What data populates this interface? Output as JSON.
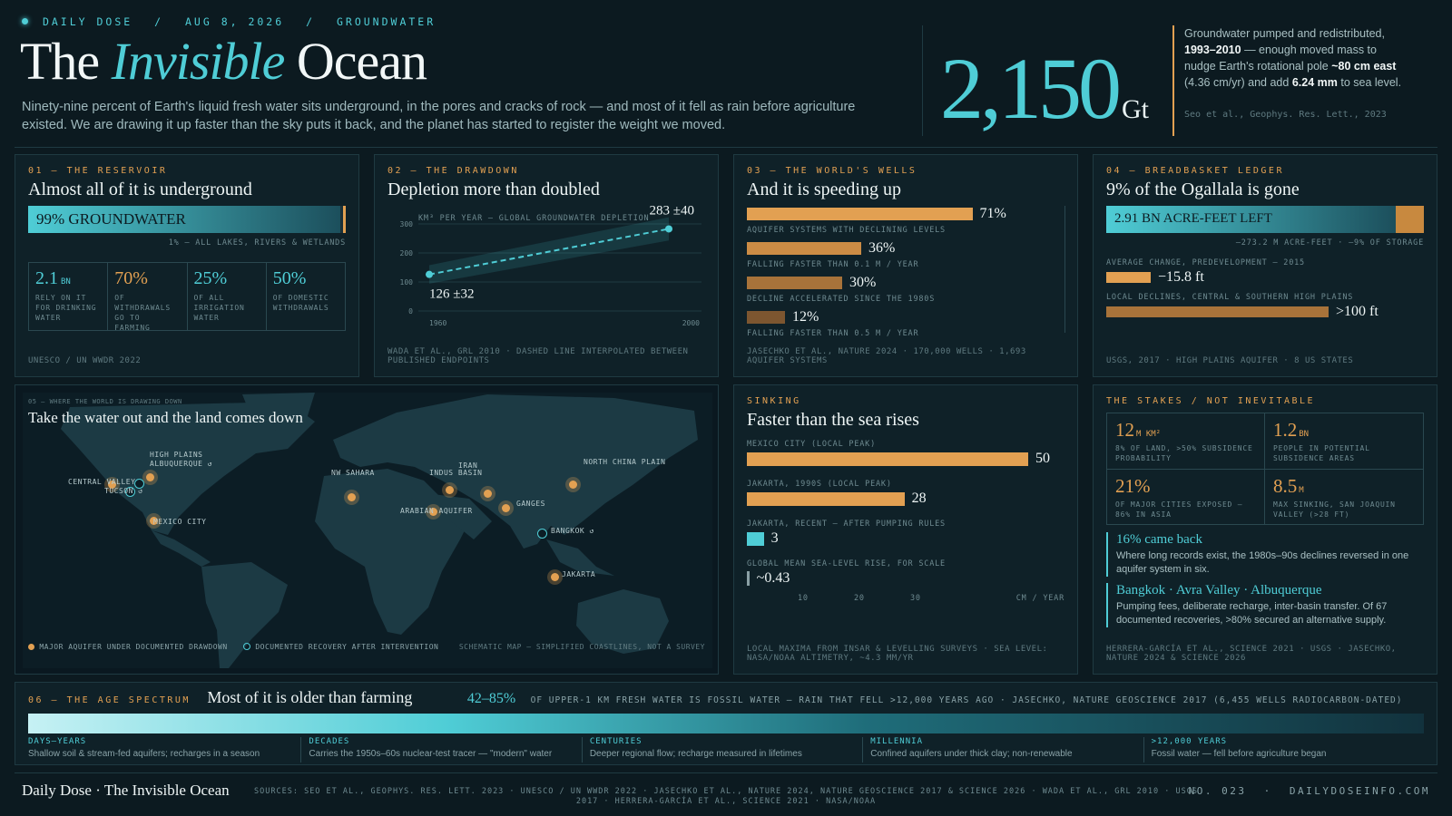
{
  "header": {
    "kicker": [
      "DAILY DOSE",
      "/",
      "AUG 8, 2026",
      "/",
      "GROUNDWATER"
    ],
    "title_1": "The",
    "title_2": "Invisible",
    "title_3": "Ocean",
    "lede": "Ninety-nine percent of Earth's liquid fresh water sits underground, in the pores and cracks of rock — and most of it fell as rain before agriculture existed. We are drawing it up faster than the sky puts it back, and the planet has started to register the weight we moved.",
    "big_number": "2,150",
    "big_unit": "Gt",
    "side_text_1": "Groundwater pumped and redistributed,",
    "side_bold_1": "1993–2010",
    "side_text_2": "— enough moved mass to nudge Earth's rotational pole",
    "side_bold_2": "~80 cm east",
    "side_text_3": "(4.36 cm/yr) and add",
    "side_bold_3": "6.24 mm",
    "side_text_4": "to sea level.",
    "side_source": "Seo et al., Geophys. Res. Lett., 2023"
  },
  "p1": {
    "kicker": "01 — THE RESERVOIR",
    "title": "Almost all of it is underground",
    "bar_label": "99% GROUNDWATER",
    "bar_fraction": 0.99,
    "bar_caption": "1% — ALL LAKES, RIVERS & WETLANDS",
    "stats": [
      {
        "value": "2.1",
        "unit": "BN",
        "label": "RELY ON IT FOR DRINKING WATER",
        "color": "#4fcdd6"
      },
      {
        "value": "70%",
        "unit": "",
        "label": "OF WITHDRAWALS GO TO FARMING",
        "color": "#e2a052"
      },
      {
        "value": "25%",
        "unit": "",
        "label": "OF ALL IRRIGATION WATER",
        "color": "#4fcdd6"
      },
      {
        "value": "50%",
        "unit": "",
        "label": "OF DOMESTIC WITHDRAWALS",
        "color": "#4fcdd6"
      }
    ],
    "source": "UNESCO / UN WWDR 2022"
  },
  "p2": {
    "kicker": "02 — THE DRAWDOWN",
    "title": "Depletion more than doubled",
    "axis_title": "KM³ PER YEAR — GLOBAL GROUNDWATER DEPLETION",
    "start_label": "126 ±32",
    "end_label": "283 ±40",
    "source": "WADA ET AL., GRL 2010 · DASHED LINE INTERPOLATED BETWEEN PUBLISHED ENDPOINTS"
  },
  "chart_data": {
    "type": "line",
    "x": [
      1960,
      2000
    ],
    "values": [
      126,
      283
    ],
    "error": [
      32,
      40
    ],
    "ylim": [
      0,
      300
    ],
    "yticks": [
      "300",
      "200",
      "100",
      "0"
    ],
    "xticks": [
      "1960",
      "2000"
    ],
    "ylabel": "KM³ PER YEAR — GLOBAL GROUNDWATER DEPLETION"
  },
  "p3": {
    "kicker": "03 — THE WORLD'S WELLS",
    "title": "And it is speeding up",
    "bars": [
      {
        "value": "71%",
        "frac": 0.71,
        "label": "AQUIFER SYSTEMS WITH DECLINING LEVELS",
        "color": "#e2a052"
      },
      {
        "value": "36%",
        "frac": 0.36,
        "label": "FALLING FASTER THAN 0.1 M / YEAR",
        "color": "#cc8c45"
      },
      {
        "value": "30%",
        "frac": 0.3,
        "label": "DECLINE ACCELERATED SINCE THE 1980s",
        "color": "#a8733a"
      },
      {
        "value": "12%",
        "frac": 0.12,
        "label": "FALLING FASTER THAN 0.5 M / YEAR",
        "color": "#7d5630"
      }
    ],
    "source": "JASECHKO ET AL., NATURE 2024 · 170,000 WELLS · 1,693 AQUIFER SYSTEMS"
  },
  "p4": {
    "kicker": "04 — BREADBASKET LEDGER",
    "title": "9% of the Ogallala is gone",
    "bar_label": "2.91 BN ACRE-FEET LEFT",
    "remaining_fraction": 0.91,
    "bar_caption": "—273.2 M ACRE-FEET · —9% OF STORAGE",
    "rows": [
      {
        "label": "AVERAGE CHANGE, PREDEVELOPMENT — 2015",
        "value": "−15.8 ft",
        "frac": 0.14
      },
      {
        "label": "LOCAL DECLINES, CENTRAL & SOUTHERN HIGH PLAINS",
        "value": ">100 ft",
        "frac": 0.7
      }
    ],
    "source": "USGS, 2017 · HIGH PLAINS AQUIFER · 8 US STATES"
  },
  "map": {
    "kicker": "05 — WHERE THE WORLD IS DRAWING DOWN",
    "title": "Take the water out and the land comes down",
    "points": [
      {
        "name": "HIGH PLAINS",
        "type": "drawdown"
      },
      {
        "name": "ALBUQUERQUE ↺",
        "type": "recovery"
      },
      {
        "name": "CENTRAL VALLEY",
        "type": "drawdown"
      },
      {
        "name": "TUCSON ↺",
        "type": "recovery"
      },
      {
        "name": "MEXICO CITY",
        "type": "drawdown"
      },
      {
        "name": "NW SAHARA",
        "type": "drawdown"
      },
      {
        "name": "IRAN",
        "type": "drawdown"
      },
      {
        "name": "INDUS BASIN",
        "type": "drawdown"
      },
      {
        "name": "ARABIAN AQUIFER",
        "type": "drawdown"
      },
      {
        "name": "GANGES",
        "type": "drawdown"
      },
      {
        "name": "NORTH CHINA PLAIN",
        "type": "drawdown"
      },
      {
        "name": "BANGKOK ↺",
        "type": "recovery"
      },
      {
        "name": "JAKARTA",
        "type": "drawdown"
      }
    ],
    "legend_drawdown": "MAJOR AQUIFER UNDER DOCUMENTED DRAWDOWN",
    "legend_recovery": "DOCUMENTED RECOVERY AFTER INTERVENTION",
    "note": "SCHEMATIC MAP — SIMPLIFIED COASTLINES, NOT A SURVEY"
  },
  "p6": {
    "kicker": "SINKING",
    "title": "Faster than the sea rises",
    "bars": [
      {
        "label": "MEXICO CITY (LOCAL PEAK)",
        "value": "50",
        "num": 50,
        "color": "#e2a052"
      },
      {
        "label": "JAKARTA, 1990s (LOCAL PEAK)",
        "value": "28",
        "num": 28,
        "color": "#e2a052"
      },
      {
        "label": "JAKARTA, RECENT — AFTER PUMPING RULES",
        "value": "3",
        "num": 3,
        "color": "#4fcdd6"
      },
      {
        "label": "GLOBAL MEAN SEA-LEVEL RISE, FOR SCALE",
        "value": "~0.43",
        "num": 0.43,
        "color": "#8aa0a5"
      }
    ],
    "axis_ticks": [
      "10",
      "20",
      "30"
    ],
    "axis_unit": "CM / YEAR",
    "source": "LOCAL MAXIMA FROM INSAR & LEVELLING SURVEYS · SEA LEVEL: NASA/NOAA ALTIMETRY, ~4.3 MM/YR"
  },
  "p7": {
    "kicker": "THE STAKES / NOT INEVITABLE",
    "stats": [
      {
        "value": "12",
        "unit": "M KM²",
        "label": "8% OF LAND, >50% SUBSIDENCE PROBABILITY",
        "color": "#e2a052"
      },
      {
        "value": "1.2",
        "unit": "BN",
        "label": "PEOPLE IN POTENTIAL SUBSIDENCE AREAS",
        "color": "#e2a052"
      },
      {
        "value": "21%",
        "unit": "",
        "label": "OF MAJOR CITIES EXPOSED — 86% IN ASIA",
        "color": "#e2a052"
      },
      {
        "value": "8.5",
        "unit": "M",
        "label": "MAX SINKING, SAN JOAQUIN VALLEY (>28 FT)",
        "color": "#e2a052"
      }
    ],
    "notes": [
      {
        "head": "16% came back",
        "body": "Where long records exist, the 1980s–90s declines reversed in one aquifer system in six."
      },
      {
        "head": "Bangkok · Avra Valley · Albuquerque",
        "body": "Pumping fees, deliberate recharge, inter-basin transfer. Of 67 documented recoveries, >80% secured an alternative supply."
      }
    ],
    "source": "HERRERA-GARCÍA ET AL., SCIENCE 2021 · USGS · JASECHKO, NATURE 2024 & SCIENCE 2026"
  },
  "age": {
    "kicker": "06 — THE AGE SPECTRUM",
    "title": "Most of it is older than farming",
    "stat": "42–85%",
    "stat_text": "OF UPPER-1 KM FRESH WATER IS FOSSIL WATER — RAIN THAT FELL >12,000 YEARS AGO · JASECHKO, NATURE GEOSCIENCE 2017 (6,455 WELLS RADIOCARBON-DATED)",
    "segments": [
      {
        "head": "DAYS–YEARS",
        "body": "Shallow soil & stream-fed aquifers; recharges in a season"
      },
      {
        "head": "DECADES",
        "body": "Carries the 1950s–60s nuclear-test tracer — \"modern\" water"
      },
      {
        "head": "CENTURIES",
        "body": "Deeper regional flow; recharge measured in lifetimes"
      },
      {
        "head": "MILLENNIA",
        "body": "Confined aquifers under thick clay; non-renewable"
      },
      {
        "head": ">12,000 YEARS",
        "body": "Fossil water — fell before agriculture began"
      }
    ]
  },
  "footer": {
    "brand": "Daily Dose · The Invisible Ocean",
    "sources": "SOURCES: SEO ET AL., GEOPHYS. RES. LETT. 2023 · UNESCO / UN WWDR 2022 · JASECHKO ET AL., NATURE 2024, NATURE GEOSCIENCE 2017 & SCIENCE 2026 · WADA ET AL., GRL 2010 · USGS 2017 · HERRERA-GARCÍA ET AL., SCIENCE 2021 · NASA/NOAA",
    "issue": "NO. 023",
    "sep": "·",
    "site": "DAILYDOSEINFO.COM"
  },
  "colors": {
    "cyan": "#4fcdd6",
    "amber": "#e2a052",
    "bg": "#0c1a20",
    "panel": "#0f2128"
  }
}
